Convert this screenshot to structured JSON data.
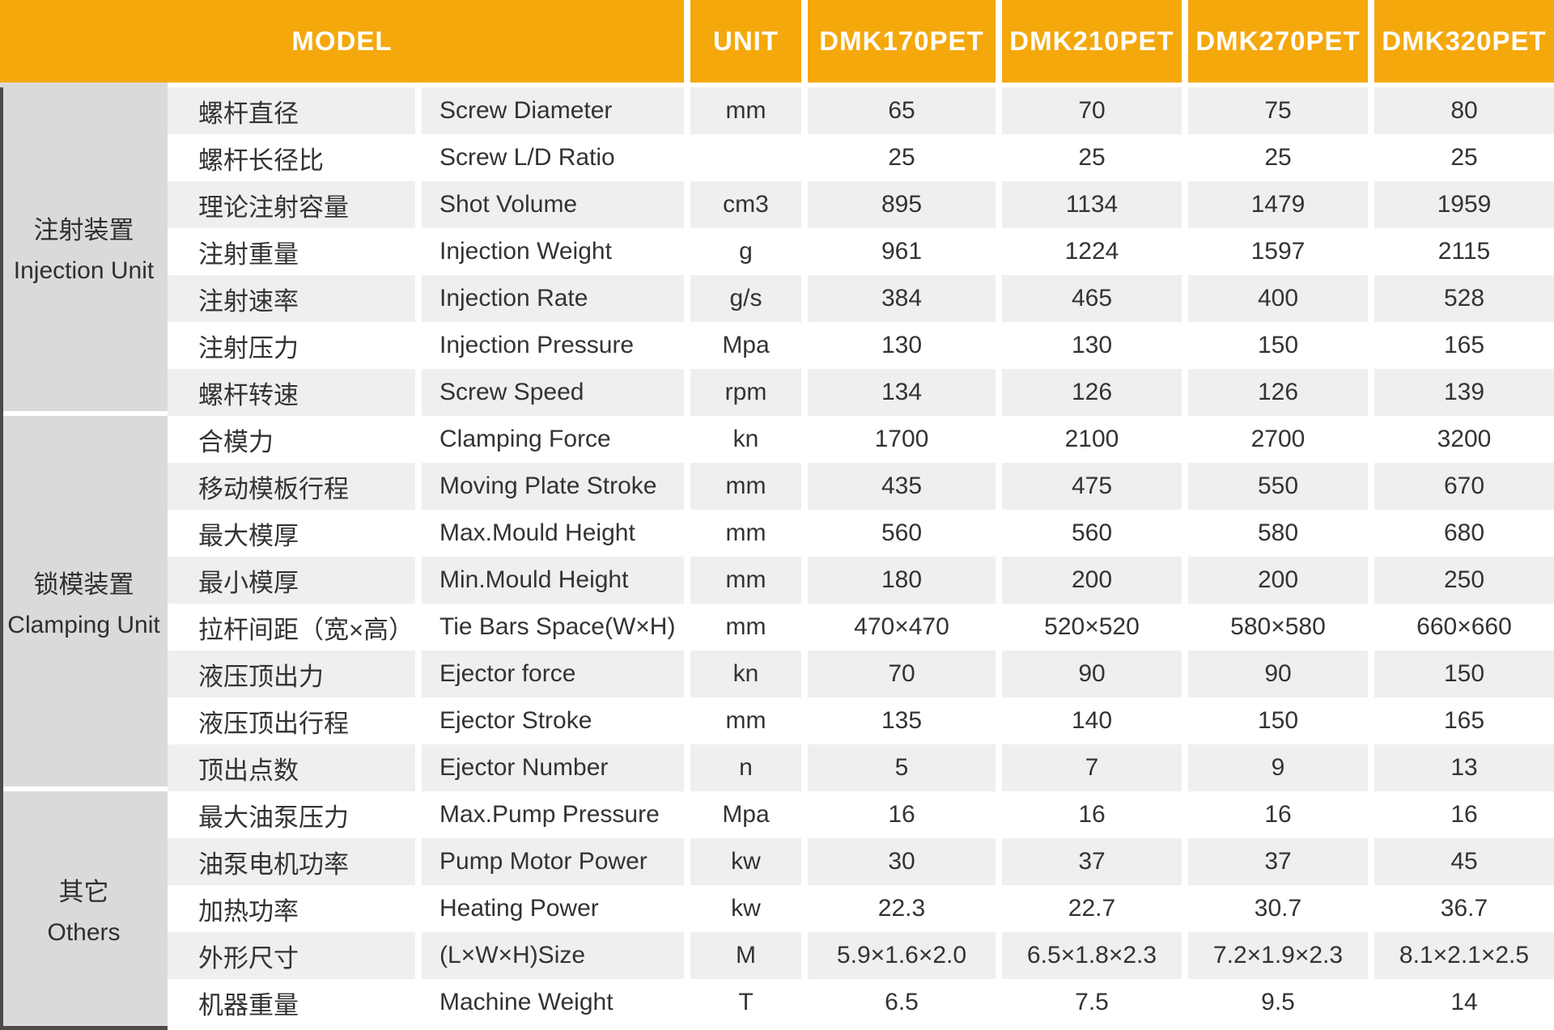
{
  "colors": {
    "header_bg": "#F5A80C",
    "header_text": "#FFFFFF",
    "section_bg": "#DADADA",
    "stripe_bg": "#EFEFED",
    "row_bg": "#FFFFFF",
    "text": "#333333",
    "border_dark": "#4D4A47"
  },
  "chart_data": {
    "type": "table",
    "header": {
      "model_label": "MODEL",
      "unit_label": "UNIT",
      "models": [
        "DMK170PET",
        "DMK210PET",
        "DMK270PET",
        "DMK320PET"
      ]
    },
    "sections": [
      {
        "name_cn": "注射装置",
        "name_en": "Injection Unit",
        "rows": [
          {
            "cn": "螺杆直径",
            "en": "Screw Diameter",
            "unit": "mm",
            "values": [
              "65",
              "70",
              "75",
              "80"
            ]
          },
          {
            "cn": "螺杆长径比",
            "en": "Screw L/D Ratio",
            "unit": "",
            "values": [
              "25",
              "25",
              "25",
              "25"
            ]
          },
          {
            "cn": "理论注射容量",
            "en": "Shot Volume",
            "unit": "cm3",
            "values": [
              "895",
              "1134",
              "1479",
              "1959"
            ]
          },
          {
            "cn": "注射重量",
            "en": "Injection Weight",
            "unit": "g",
            "values": [
              "961",
              "1224",
              "1597",
              "2115"
            ]
          },
          {
            "cn": "注射速率",
            "en": "Injection Rate",
            "unit": "g/s",
            "values": [
              "384",
              "465",
              "400",
              "528"
            ]
          },
          {
            "cn": "注射压力",
            "en": "Injection Pressure",
            "unit": "Mpa",
            "values": [
              "130",
              "130",
              "150",
              "165"
            ]
          },
          {
            "cn": "螺杆转速",
            "en": "Screw Speed",
            "unit": "rpm",
            "values": [
              "134",
              "126",
              "126",
              "139"
            ]
          }
        ]
      },
      {
        "name_cn": "锁模装置",
        "name_en": "Clamping Unit",
        "rows": [
          {
            "cn": "合模力",
            "en": "Clamping Force",
            "unit": "kn",
            "values": [
              "1700",
              "2100",
              "2700",
              "3200"
            ]
          },
          {
            "cn": "移动模板行程",
            "en": "Moving Plate Stroke",
            "unit": "mm",
            "values": [
              "435",
              "475",
              "550",
              "670"
            ]
          },
          {
            "cn": "最大模厚",
            "en": "Max.Mould Height",
            "unit": "mm",
            "values": [
              "560",
              "560",
              "580",
              "680"
            ]
          },
          {
            "cn": "最小模厚",
            "en": "Min.Mould Height",
            "unit": "mm",
            "values": [
              "180",
              "200",
              "200",
              "250"
            ]
          },
          {
            "cn": "拉杆间距（宽×高）",
            "en": "Tie Bars Space(W×H)",
            "unit": "mm",
            "values": [
              "470×470",
              "520×520",
              "580×580",
              "660×660"
            ]
          },
          {
            "cn": "液压顶出力",
            "en": "Ejector force",
            "unit": "kn",
            "values": [
              "70",
              "90",
              "90",
              "150"
            ]
          },
          {
            "cn": "液压顶出行程",
            "en": "Ejector Stroke",
            "unit": "mm",
            "values": [
              "135",
              "140",
              "150",
              "165"
            ]
          },
          {
            "cn": "顶出点数",
            "en": "Ejector Number",
            "unit": "n",
            "values": [
              "5",
              "7",
              "9",
              "13"
            ]
          }
        ]
      },
      {
        "name_cn": "其它",
        "name_en": "Others",
        "rows": [
          {
            "cn": "最大油泵压力",
            "en": "Max.Pump Pressure",
            "unit": "Mpa",
            "values": [
              "16",
              "16",
              "16",
              "16"
            ]
          },
          {
            "cn": "油泵电机功率",
            "en": "Pump Motor Power",
            "unit": "kw",
            "values": [
              "30",
              "37",
              "37",
              "45"
            ]
          },
          {
            "cn": "加热功率",
            "en": "Heating Power",
            "unit": "kw",
            "values": [
              "22.3",
              "22.7",
              "30.7",
              "36.7"
            ]
          },
          {
            "cn": "外形尺寸",
            "en": "(L×W×H)Size",
            "unit": "M",
            "values": [
              "5.9×1.6×2.0",
              "6.5×1.8×2.3",
              "7.2×1.9×2.3",
              "8.1×2.1×2.5"
            ]
          },
          {
            "cn": "机器重量",
            "en": "Machine Weight",
            "unit": "T",
            "values": [
              "6.5",
              "7.5",
              "9.5",
              "14"
            ]
          }
        ]
      }
    ]
  }
}
